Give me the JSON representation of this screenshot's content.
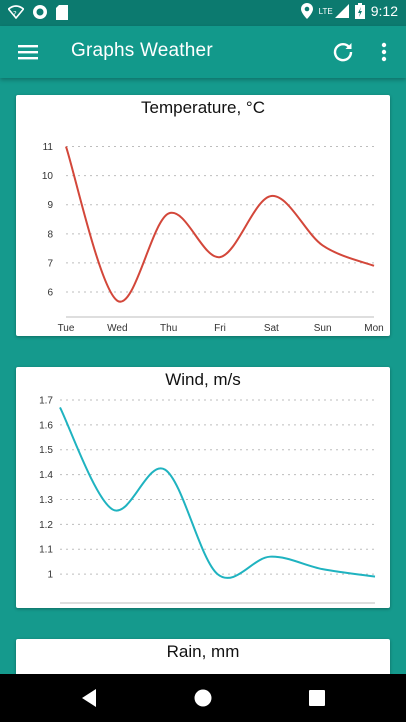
{
  "app": {
    "title": "Graphs Weather"
  },
  "status": {
    "time": "9:12",
    "network": "LTE"
  },
  "colors": {
    "primary": "#12998b",
    "background": "#159a8d",
    "temperature_line": "#d3473a",
    "wind_line": "#1fb3c0"
  },
  "icons": [
    "menu-icon",
    "refresh-icon",
    "more-vert-icon",
    "wifi-icon",
    "signal-icon",
    "battery-icon",
    "location-icon",
    "back-icon",
    "home-icon",
    "recents-icon"
  ],
  "cards": {
    "temperature": {
      "title": "Temperature, °C"
    },
    "wind": {
      "title": "Wind, m/s"
    },
    "rain": {
      "title": "Rain, mm"
    }
  },
  "chart_data": [
    {
      "type": "line",
      "title": "Temperature, °C",
      "categories": [
        "Tue",
        "Wed",
        "Thu",
        "Fri",
        "Sat",
        "Sun",
        "Mon"
      ],
      "values": [
        11,
        5.7,
        8.7,
        7.2,
        9.3,
        7.6,
        6.9
      ],
      "yticks": [
        6,
        7,
        8,
        9,
        10,
        11
      ],
      "ylim": [
        5.45,
        11.5
      ],
      "grid": true
    },
    {
      "type": "line",
      "title": "Wind, m/s",
      "categories": [
        "Tue",
        "Wed",
        "Thu",
        "Fri",
        "Sat",
        "Sun",
        "Mon"
      ],
      "values": [
        1.67,
        1.26,
        1.42,
        1.0,
        1.07,
        1.02,
        0.99
      ],
      "yticks": [
        1,
        1.1,
        1.2,
        1.3,
        1.4,
        1.5,
        1.6,
        1.7
      ],
      "ylim": [
        0.92,
        1.72
      ],
      "grid": true
    }
  ]
}
